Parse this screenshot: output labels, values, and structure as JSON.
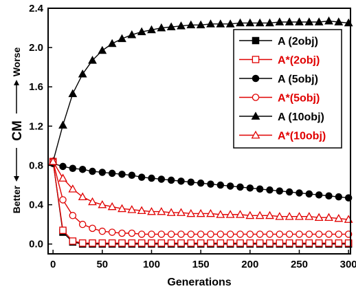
{
  "chart_data": {
    "type": "line",
    "xlabel": "Generations",
    "ylabel_main": "CM",
    "ylabel_better": "Better",
    "ylabel_worse": "Worse",
    "xlim": [
      -5,
      302
    ],
    "ylim": [
      -0.1,
      2.4
    ],
    "xticks": [
      0,
      50,
      100,
      150,
      200,
      250,
      300
    ],
    "yticks": [
      0.0,
      0.4,
      0.8,
      1.2,
      1.6,
      2.0,
      2.4
    ],
    "ytick_labels": [
      "0.0",
      "0.4",
      "0.8",
      "1.2",
      "1.6",
      "2.0",
      "2.4"
    ],
    "legend_placement": "top-right",
    "x": [
      0,
      10,
      20,
      30,
      40,
      50,
      60,
      70,
      80,
      90,
      100,
      110,
      120,
      130,
      140,
      150,
      160,
      170,
      180,
      190,
      200,
      210,
      220,
      230,
      240,
      250,
      260,
      270,
      280,
      290,
      300
    ],
    "series": [
      {
        "name": "A (2obj)",
        "color": "#000000",
        "marker": "square",
        "filled": true,
        "values": [
          0.84,
          0.12,
          0.02,
          0.0,
          0.0,
          0.0,
          0.0,
          0.0,
          0.0,
          0.0,
          0.0,
          0.0,
          0.0,
          0.0,
          0.0,
          0.0,
          0.0,
          0.0,
          0.0,
          0.0,
          0.0,
          0.0,
          0.0,
          0.0,
          0.0,
          0.0,
          0.0,
          0.0,
          0.0,
          0.0,
          0.0
        ]
      },
      {
        "name": "A*(2obj)",
        "color": "#e00000",
        "marker": "square",
        "filled": false,
        "values": [
          0.84,
          0.14,
          0.03,
          0.01,
          0.01,
          0.01,
          0.01,
          0.01,
          0.01,
          0.01,
          0.01,
          0.01,
          0.01,
          0.01,
          0.01,
          0.01,
          0.01,
          0.01,
          0.01,
          0.01,
          0.01,
          0.01,
          0.01,
          0.01,
          0.01,
          0.01,
          0.01,
          0.01,
          0.01,
          0.01,
          0.01
        ]
      },
      {
        "name": "A (5obj)",
        "color": "#000000",
        "marker": "circle",
        "filled": true,
        "values": [
          0.82,
          0.79,
          0.77,
          0.76,
          0.74,
          0.73,
          0.72,
          0.71,
          0.7,
          0.68,
          0.67,
          0.66,
          0.65,
          0.64,
          0.63,
          0.62,
          0.61,
          0.6,
          0.59,
          0.58,
          0.57,
          0.56,
          0.55,
          0.54,
          0.53,
          0.52,
          0.51,
          0.5,
          0.49,
          0.48,
          0.47
        ]
      },
      {
        "name": "A*(5obj)",
        "color": "#e00000",
        "marker": "circle",
        "filled": false,
        "values": [
          0.84,
          0.45,
          0.29,
          0.2,
          0.16,
          0.13,
          0.12,
          0.11,
          0.11,
          0.1,
          0.1,
          0.1,
          0.1,
          0.1,
          0.1,
          0.1,
          0.1,
          0.1,
          0.1,
          0.1,
          0.1,
          0.1,
          0.1,
          0.1,
          0.1,
          0.1,
          0.1,
          0.1,
          0.1,
          0.1,
          0.1
        ]
      },
      {
        "name": "A (10obj)",
        "color": "#000000",
        "marker": "triangle",
        "filled": true,
        "values": [
          0.84,
          1.21,
          1.53,
          1.73,
          1.87,
          1.97,
          2.04,
          2.09,
          2.13,
          2.16,
          2.18,
          2.2,
          2.21,
          2.22,
          2.23,
          2.23,
          2.24,
          2.24,
          2.24,
          2.25,
          2.25,
          2.25,
          2.25,
          2.26,
          2.26,
          2.26,
          2.26,
          2.26,
          2.27,
          2.26,
          2.25
        ]
      },
      {
        "name": "A*(10obj)",
        "color": "#e00000",
        "marker": "triangle",
        "filled": false,
        "values": [
          0.84,
          0.67,
          0.56,
          0.48,
          0.43,
          0.4,
          0.38,
          0.36,
          0.35,
          0.34,
          0.33,
          0.33,
          0.32,
          0.32,
          0.31,
          0.31,
          0.31,
          0.3,
          0.3,
          0.3,
          0.29,
          0.29,
          0.29,
          0.28,
          0.28,
          0.28,
          0.28,
          0.27,
          0.27,
          0.26,
          0.25
        ]
      }
    ]
  }
}
